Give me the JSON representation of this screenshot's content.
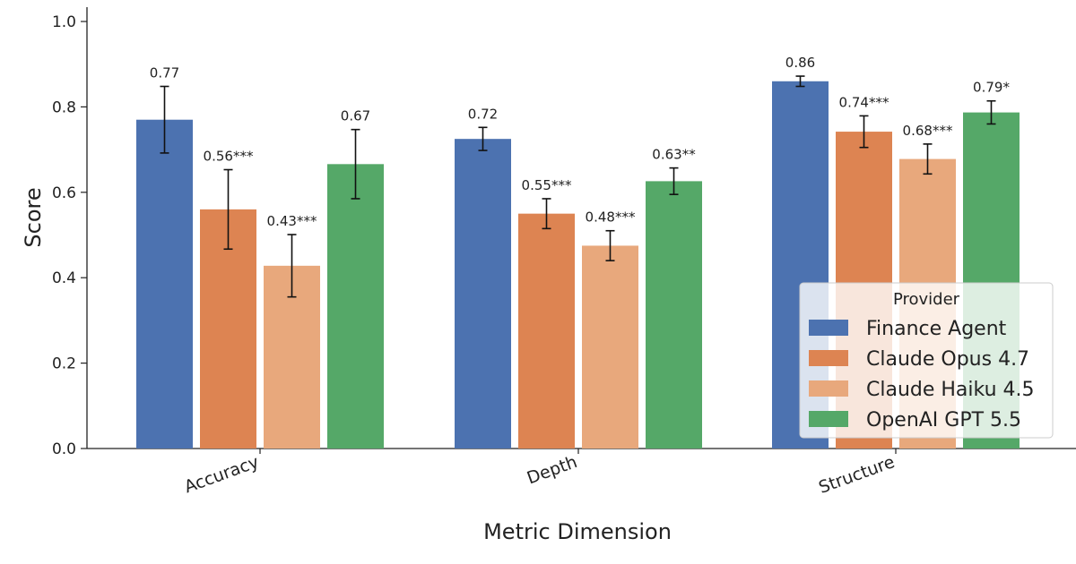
{
  "chart_data": {
    "type": "bar",
    "xlabel": "Metric Dimension",
    "ylabel": "Score",
    "ylim": [
      0,
      1.0
    ],
    "yticks": [
      "0.0",
      "0.2",
      "0.4",
      "0.6",
      "0.8",
      "1.0"
    ],
    "categories": [
      "Accuracy",
      "Depth",
      "Structure"
    ],
    "legend": {
      "title": "Provider",
      "position": "lower-right"
    },
    "series": [
      {
        "name": "Finance Agent",
        "color": "#4c72b0",
        "values": [
          0.77,
          0.725,
          0.86
        ],
        "errors": [
          0.078,
          0.027,
          0.012
        ],
        "labels": [
          "0.77",
          "0.72",
          "0.86"
        ]
      },
      {
        "name": "Claude Opus 4.7",
        "color": "#dd8452",
        "values": [
          0.56,
          0.55,
          0.742
        ],
        "errors": [
          0.093,
          0.035,
          0.037
        ],
        "labels": [
          "0.56***",
          "0.55***",
          "0.74***"
        ]
      },
      {
        "name": "Claude Haiku 4.5",
        "color": "#e8a87c",
        "values": [
          0.428,
          0.475,
          0.678
        ],
        "errors": [
          0.073,
          0.035,
          0.035
        ],
        "labels": [
          "0.43***",
          "0.48***",
          "0.68***"
        ]
      },
      {
        "name": "OpenAI GPT 5.5",
        "color": "#55a868",
        "values": [
          0.666,
          0.626,
          0.787
        ],
        "errors": [
          0.081,
          0.031,
          0.027
        ],
        "labels": [
          "0.67",
          "0.63**",
          "0.79*"
        ]
      }
    ]
  }
}
